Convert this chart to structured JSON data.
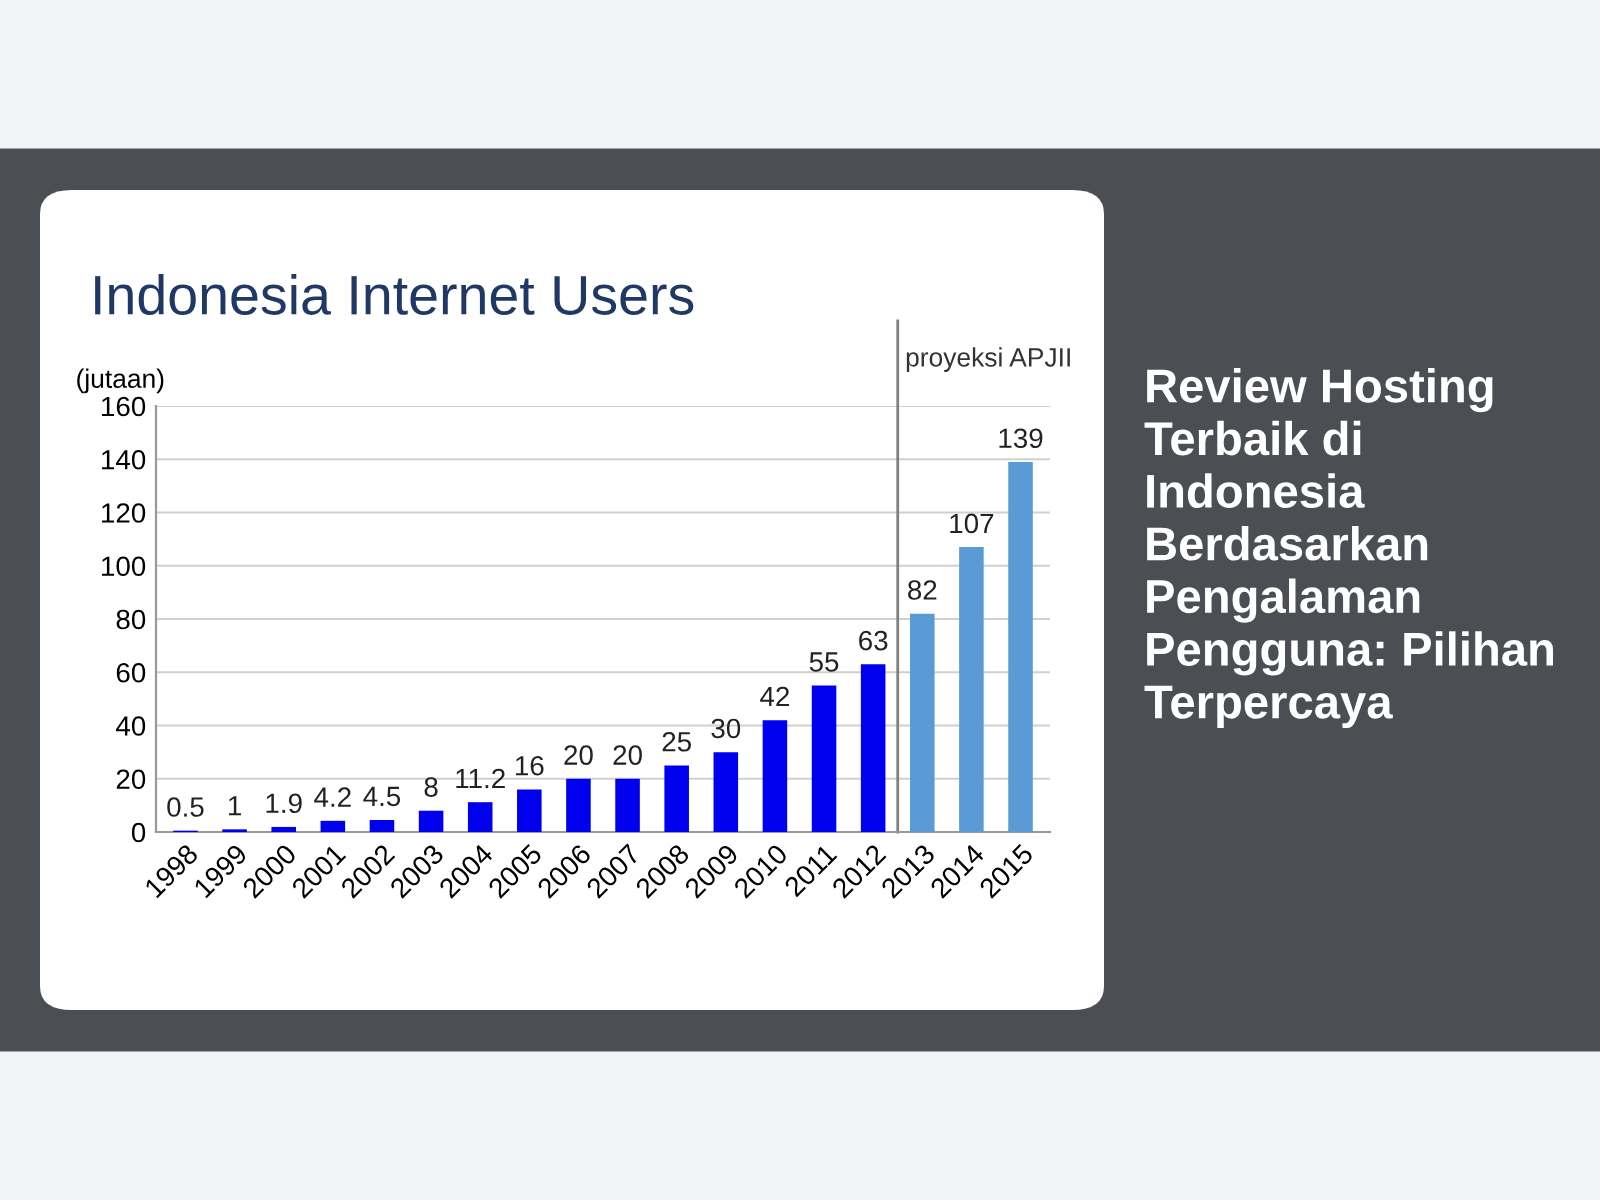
{
  "chart_data": {
    "type": "bar",
    "title": "Indonesia Internet Users",
    "ylabel": "(jutaan)",
    "categories": [
      "1998",
      "1999",
      "2000",
      "2001",
      "2002",
      "2003",
      "2004",
      "2005",
      "2006",
      "2007",
      "2008",
      "2009",
      "2010",
      "2011",
      "2012",
      "2013",
      "2014",
      "2015"
    ],
    "values": [
      0.5,
      1,
      1.9,
      4.2,
      4.5,
      8,
      11.2,
      16,
      20,
      20,
      25,
      30,
      42,
      55,
      63,
      82,
      107,
      139
    ],
    "colors": [
      "#0000ee",
      "#0000ee",
      "#0000ee",
      "#0000ee",
      "#0000ee",
      "#0000ee",
      "#0000ee",
      "#0000ee",
      "#0000ee",
      "#0000ee",
      "#0000ee",
      "#0000ee",
      "#0000ee",
      "#0000ee",
      "#0000ee",
      "#5b9bd5",
      "#5b9bd5",
      "#5b9bd5"
    ],
    "data_labels": true,
    "ylim": [
      0,
      160
    ],
    "yticks": [
      0,
      20,
      40,
      60,
      80,
      100,
      120,
      140,
      160
    ],
    "grid": "y",
    "ref_lines": [
      {
        "axis": "x",
        "value": "2013",
        "label": "proyeksi APJII",
        "color": "#808080"
      }
    ],
    "annotations": [
      "Review Hosting Terbaik di Indonesia Berdasarkan Pengalaman Pengguna: Pilihan Terpercaya"
    ]
  }
}
